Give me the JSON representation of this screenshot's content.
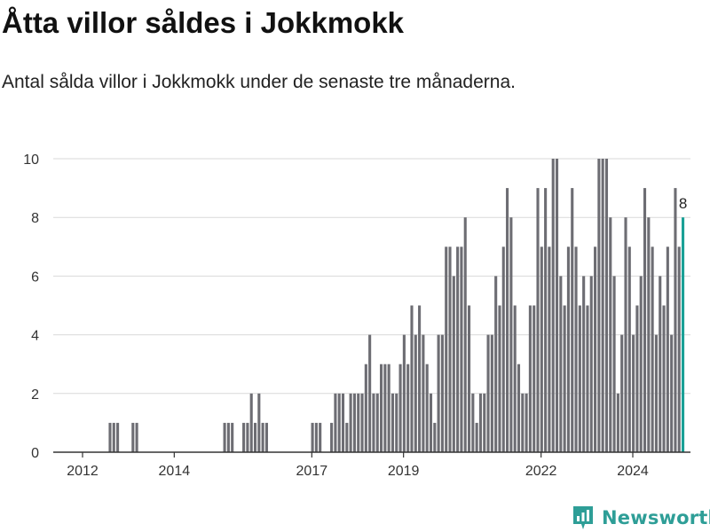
{
  "title": "Åtta villor såldes i Jokkmokk",
  "subtitle": "Antal sålda villor i Jokkmokk under de senaste tre månaderna.",
  "brand": {
    "name": "Newsworthy",
    "color": "#2e9e97"
  },
  "chart_data": {
    "type": "bar",
    "title": "Åtta villor såldes i Jokkmokk",
    "subtitle": "Antal sålda villor i Jokkmokk under de senaste tre månaderna.",
    "xlabel": "",
    "ylabel": "",
    "x_unit": "month (decimal year)",
    "ylim": [
      0,
      10
    ],
    "y_ticks": [
      0,
      2,
      4,
      6,
      8,
      10
    ],
    "x_ticks": [
      {
        "label": "2012",
        "value": 2012.0
      },
      {
        "label": "2014",
        "value": 2014.0
      },
      {
        "label": "2017",
        "value": 2017.0
      },
      {
        "label": "2019",
        "value": 2019.0
      },
      {
        "label": "2022",
        "value": 2022.0
      },
      {
        "label": "2024",
        "value": 2024.0
      }
    ],
    "grid": true,
    "bar_color": "#6d6d73",
    "highlight_color": "#1aa096",
    "highlight_label": "8",
    "start": 2011.6,
    "step": 0.0833,
    "values": [
      0,
      0,
      0,
      0,
      0,
      0,
      0,
      0,
      0,
      0,
      0,
      0,
      1,
      1,
      1,
      0,
      0,
      0,
      1,
      1,
      0,
      0,
      0,
      0,
      0,
      0,
      0,
      0,
      0,
      0,
      0,
      0,
      0,
      0,
      0,
      0,
      0,
      0,
      0,
      0,
      0,
      0,
      1,
      1,
      1,
      0,
      0,
      1,
      1,
      2,
      1,
      2,
      1,
      1,
      0,
      0,
      0,
      0,
      0,
      0,
      0,
      0,
      0,
      0,
      0,
      1,
      1,
      1,
      0,
      0,
      1,
      2,
      2,
      2,
      1,
      2,
      2,
      2,
      2,
      3,
      4,
      2,
      2,
      3,
      3,
      3,
      2,
      2,
      3,
      4,
      3,
      5,
      4,
      5,
      4,
      3,
      2,
      1,
      4,
      4,
      7,
      7,
      6,
      7,
      7,
      8,
      5,
      2,
      1,
      2,
      2,
      4,
      4,
      6,
      5,
      7,
      9,
      8,
      5,
      3,
      2,
      2,
      5,
      5,
      9,
      7,
      9,
      7,
      10,
      10,
      6,
      5,
      7,
      9,
      7,
      5,
      6,
      5,
      6,
      7,
      10,
      10,
      10,
      8,
      6,
      2,
      4,
      8,
      7,
      4,
      5,
      6,
      9,
      8,
      7,
      4,
      6,
      5,
      7,
      4,
      9,
      7,
      8
    ]
  }
}
